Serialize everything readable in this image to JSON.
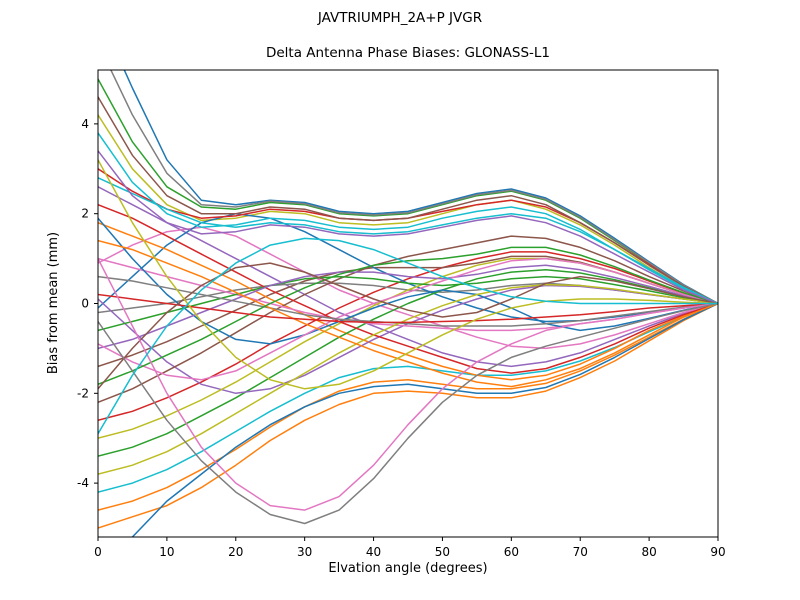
{
  "figure": {
    "suptitle": "JAVTRIUMPH_2A+P JVGR",
    "title": "Delta Antenna Phase Biases: GLONASS-L1"
  },
  "chart_data": {
    "type": "line",
    "title": "Delta Antenna Phase Biases: GLONASS-L1",
    "xlabel": "Elvation angle (degrees)",
    "ylabel": "Bias from mean (mm)",
    "xlim": [
      0,
      90
    ],
    "ylim": [
      -5.2,
      5.2
    ],
    "xticks": [
      0,
      10,
      20,
      30,
      40,
      50,
      60,
      70,
      80,
      90
    ],
    "yticks": [
      -4,
      -2,
      0,
      2,
      4
    ],
    "grid": false,
    "legend": "none",
    "palette": [
      "#1f77b4",
      "#ff7f0e",
      "#2ca02c",
      "#d62728",
      "#9467bd",
      "#8c564b",
      "#e377c2",
      "#7f7f7f",
      "#bcbd22",
      "#17becf"
    ],
    "x": [
      0,
      5,
      10,
      15,
      20,
      25,
      30,
      35,
      40,
      45,
      50,
      55,
      60,
      65,
      70,
      75,
      80,
      85,
      90
    ],
    "series": [
      {
        "values": [
          6.5,
          4.8,
          3.2,
          2.3,
          2.2,
          2.3,
          2.25,
          2.05,
          2.0,
          2.05,
          2.25,
          2.45,
          2.55,
          2.35,
          1.95,
          1.45,
          0.93,
          0.42,
          0
        ]
      },
      {
        "values": [
          -5.0,
          -4.75,
          -4.5,
          -4.1,
          -3.6,
          -3.05,
          -2.6,
          -2.25,
          -2.0,
          -1.95,
          -2.0,
          -2.1,
          -2.1,
          -1.95,
          -1.65,
          -1.28,
          -0.83,
          -0.38,
          0
        ]
      },
      {
        "values": [
          5.0,
          3.6,
          2.6,
          2.15,
          2.1,
          2.25,
          2.2,
          2.0,
          1.95,
          2.0,
          2.2,
          2.4,
          2.5,
          2.3,
          1.9,
          1.4,
          0.9,
          0.4,
          0
        ]
      },
      {
        "values": [
          -2.6,
          -2.4,
          -2.1,
          -1.75,
          -1.35,
          -0.9,
          -0.5,
          -0.1,
          0.25,
          0.55,
          0.8,
          1.0,
          1.15,
          1.15,
          1.0,
          0.78,
          0.5,
          0.23,
          0
        ]
      },
      {
        "values": [
          2.6,
          2.2,
          1.8,
          1.4,
          1.0,
          0.6,
          0.2,
          -0.2,
          -0.5,
          -0.8,
          -1.1,
          -1.3,
          -1.4,
          -1.3,
          -1.1,
          -0.8,
          -0.5,
          -0.22,
          0
        ]
      },
      {
        "values": [
          -1.4,
          -1.15,
          -0.85,
          -0.5,
          -0.15,
          0.2,
          0.5,
          0.7,
          0.8,
          0.8,
          0.8,
          0.9,
          1.05,
          1.05,
          0.92,
          0.7,
          0.45,
          0.2,
          0
        ]
      },
      {
        "values": [
          0.9,
          1.3,
          1.6,
          1.7,
          1.5,
          1.1,
          0.7,
          0.3,
          0,
          -0.25,
          -0.5,
          -0.75,
          -0.95,
          -1.0,
          -0.9,
          -0.7,
          -0.45,
          -0.2,
          0
        ]
      },
      {
        "values": [
          -0.2,
          -0.1,
          0,
          0.15,
          0.3,
          0.4,
          0.45,
          0.45,
          0.4,
          0.3,
          0.25,
          0.3,
          0.4,
          0.45,
          0.4,
          0.3,
          0.2,
          0.1,
          0
        ]
      },
      {
        "values": [
          4.2,
          3.0,
          2.2,
          1.85,
          1.9,
          2.05,
          2.0,
          1.8,
          1.75,
          1.8,
          2.0,
          2.2,
          2.3,
          2.1,
          1.75,
          1.3,
          0.8,
          0.35,
          0
        ]
      },
      {
        "values": [
          -4.2,
          -4.0,
          -3.7,
          -3.3,
          -2.85,
          -2.4,
          -2.0,
          -1.65,
          -1.45,
          -1.4,
          -1.5,
          -1.6,
          -1.6,
          -1.5,
          -1.28,
          -0.98,
          -0.63,
          -0.3,
          0
        ]
      },
      {
        "values": [
          -0.1,
          0.6,
          1.3,
          1.8,
          2.0,
          1.9,
          1.6,
          1.2,
          0.8,
          0.45,
          0.15,
          -0.1,
          -0.3,
          -0.4,
          -0.38,
          -0.3,
          -0.2,
          -0.1,
          0
        ]
      },
      {
        "values": [
          1.8,
          1.5,
          1.2,
          0.85,
          0.5,
          0.1,
          -0.25,
          -0.6,
          -0.9,
          -1.15,
          -1.4,
          -1.6,
          -1.7,
          -1.6,
          -1.35,
          -1.0,
          -0.6,
          -0.28,
          0
        ]
      },
      {
        "values": [
          -3.4,
          -3.2,
          -2.9,
          -2.5,
          -2.1,
          -1.65,
          -1.2,
          -0.75,
          -0.35,
          0,
          0.3,
          0.55,
          0.7,
          0.75,
          0.68,
          0.53,
          0.35,
          0.16,
          0
        ]
      },
      {
        "values": [
          3.0,
          2.5,
          2.1,
          1.9,
          1.95,
          2.1,
          2.05,
          1.9,
          1.85,
          1.9,
          2.05,
          2.2,
          2.3,
          2.15,
          1.8,
          1.35,
          0.87,
          0.4,
          0
        ]
      },
      {
        "values": [
          0.1,
          -0.6,
          -1.3,
          -1.8,
          -2.0,
          -1.9,
          -1.6,
          -1.2,
          -0.8,
          -0.45,
          -0.15,
          0.1,
          0.3,
          0.4,
          0.38,
          0.3,
          0.2,
          0.1,
          0
        ]
      },
      {
        "values": [
          -2.2,
          -1.9,
          -1.5,
          -1.1,
          -0.65,
          -0.2,
          0.2,
          0.55,
          0.85,
          1.05,
          1.2,
          1.35,
          1.5,
          1.45,
          1.25,
          0.95,
          0.6,
          0.28,
          0
        ]
      },
      {
        "values": [
          1.0,
          0.8,
          0.6,
          0.4,
          0.2,
          0,
          -0.2,
          -0.35,
          -0.45,
          -0.5,
          -0.55,
          -0.6,
          -0.6,
          -0.55,
          -0.45,
          -0.35,
          -0.22,
          -0.1,
          0
        ]
      },
      {
        "values": [
          5.8,
          4.2,
          2.9,
          2.2,
          2.15,
          2.28,
          2.22,
          2.02,
          1.97,
          2.02,
          2.22,
          2.42,
          2.52,
          2.32,
          1.92,
          1.42,
          0.91,
          0.41,
          0
        ]
      },
      {
        "values": [
          -3.0,
          -2.8,
          -2.5,
          -2.15,
          -1.75,
          -1.3,
          -0.85,
          -0.45,
          -0.05,
          0.3,
          0.6,
          0.85,
          1.0,
          1.0,
          0.9,
          0.7,
          0.45,
          0.2,
          0
        ]
      },
      {
        "values": [
          3.8,
          2.7,
          2.0,
          1.7,
          1.75,
          1.9,
          1.85,
          1.7,
          1.65,
          1.7,
          1.9,
          2.05,
          2.15,
          2.0,
          1.65,
          1.2,
          0.75,
          0.33,
          0
        ]
      },
      {
        "values": [
          1.9,
          1.0,
          0.2,
          -0.4,
          -0.8,
          -0.9,
          -0.7,
          -0.4,
          -0.1,
          0.15,
          0.3,
          0.2,
          -0.1,
          -0.45,
          -0.6,
          -0.5,
          -0.33,
          -0.15,
          0
        ]
      },
      {
        "values": [
          -4.6,
          -4.4,
          -4.1,
          -3.7,
          -3.25,
          -2.75,
          -2.3,
          -1.95,
          -1.75,
          -1.7,
          -1.8,
          -1.9,
          -1.9,
          -1.78,
          -1.5,
          -1.15,
          -0.75,
          -0.35,
          0
        ]
      },
      {
        "values": [
          -0.6,
          -0.4,
          -0.2,
          0,
          0.2,
          0.4,
          0.55,
          0.6,
          0.55,
          0.45,
          0.4,
          0.45,
          0.55,
          0.6,
          0.55,
          0.42,
          0.28,
          0.13,
          0
        ]
      },
      {
        "values": [
          2.2,
          1.9,
          1.5,
          1.1,
          0.7,
          0.3,
          -0.05,
          -0.4,
          -0.7,
          -0.95,
          -1.2,
          -1.45,
          -1.55,
          -1.45,
          -1.2,
          -0.9,
          -0.55,
          -0.25,
          0
        ]
      },
      {
        "values": [
          -1.0,
          -0.8,
          -0.5,
          -0.2,
          0.1,
          0.4,
          0.6,
          0.7,
          0.7,
          0.6,
          0.55,
          0.65,
          0.8,
          0.85,
          0.75,
          0.58,
          0.38,
          0.17,
          0
        ]
      },
      {
        "values": [
          4.6,
          3.3,
          2.4,
          2.0,
          2.0,
          2.15,
          2.1,
          1.9,
          1.85,
          1.9,
          2.1,
          2.3,
          2.4,
          2.2,
          1.8,
          1.35,
          0.85,
          0.38,
          0
        ]
      },
      {
        "values": [
          -0.9,
          -1.3,
          -1.6,
          -1.7,
          -1.5,
          -1.1,
          -0.7,
          -0.3,
          0,
          0.25,
          0.5,
          0.75,
          0.95,
          1.0,
          0.9,
          0.7,
          0.45,
          0.2,
          0
        ]
      },
      {
        "values": [
          0.6,
          0.5,
          0.35,
          0.2,
          0.05,
          -0.1,
          -0.25,
          -0.35,
          -0.4,
          -0.45,
          -0.5,
          -0.5,
          -0.5,
          -0.45,
          -0.38,
          -0.28,
          -0.18,
          -0.08,
          0
        ]
      },
      {
        "values": [
          -3.8,
          -3.6,
          -3.3,
          -2.9,
          -2.45,
          -2.0,
          -1.55,
          -1.1,
          -0.7,
          -0.35,
          -0.05,
          0.2,
          0.35,
          0.42,
          0.4,
          0.32,
          0.21,
          0.1,
          0
        ]
      },
      {
        "values": [
          2.8,
          2.45,
          2.1,
          1.8,
          1.7,
          1.8,
          1.75,
          1.6,
          1.55,
          1.6,
          1.75,
          1.9,
          2.0,
          1.9,
          1.6,
          1.2,
          0.78,
          0.36,
          0
        ]
      },
      {
        "values": [
          -6.0,
          -5.2,
          -4.4,
          -3.8,
          -3.2,
          -2.7,
          -2.3,
          -2.0,
          -1.85,
          -1.8,
          -1.9,
          -2.0,
          -2.0,
          -1.87,
          -1.58,
          -1.2,
          -0.78,
          -0.36,
          0
        ]
      },
      {
        "values": [
          1.4,
          1.2,
          0.9,
          0.6,
          0.25,
          -0.1,
          -0.45,
          -0.75,
          -1.05,
          -1.3,
          -1.55,
          -1.75,
          -1.85,
          -1.7,
          -1.45,
          -1.1,
          -0.7,
          -0.3,
          0
        ]
      },
      {
        "values": [
          -1.8,
          -1.5,
          -1.15,
          -0.8,
          -0.4,
          0,
          0.35,
          0.65,
          0.85,
          0.95,
          1.0,
          1.1,
          1.25,
          1.25,
          1.08,
          0.82,
          0.52,
          0.24,
          0
        ]
      },
      {
        "values": [
          0.2,
          0.1,
          0,
          -0.1,
          -0.2,
          -0.3,
          -0.35,
          -0.4,
          -0.42,
          -0.42,
          -0.4,
          -0.38,
          -0.35,
          -0.3,
          -0.25,
          -0.18,
          -0.1,
          -0.05,
          0
        ]
      },
      {
        "values": [
          3.4,
          2.4,
          1.8,
          1.55,
          1.6,
          1.75,
          1.7,
          1.55,
          1.5,
          1.55,
          1.7,
          1.85,
          1.95,
          1.8,
          1.5,
          1.1,
          0.7,
          0.3,
          0
        ]
      },
      {
        "values": [
          -1.9,
          -1.0,
          -0.2,
          0.4,
          0.8,
          0.9,
          0.7,
          0.4,
          0.1,
          -0.15,
          -0.3,
          -0.2,
          0.1,
          0.45,
          0.6,
          0.5,
          0.33,
          0.15,
          0
        ]
      },
      {
        "values": [
          1.0,
          -0.5,
          -2.0,
          -3.2,
          -4.0,
          -4.5,
          -4.6,
          -4.3,
          -3.6,
          -2.7,
          -1.9,
          -1.3,
          -0.9,
          -0.6,
          -0.45,
          -0.35,
          -0.22,
          -0.1,
          0
        ]
      },
      {
        "values": [
          -0.4,
          -1.5,
          -2.6,
          -3.5,
          -4.2,
          -4.7,
          -4.9,
          -4.6,
          -3.9,
          -3.0,
          -2.2,
          -1.6,
          -1.2,
          -0.95,
          -0.75,
          -0.55,
          -0.35,
          -0.16,
          0
        ]
      },
      {
        "values": [
          3.2,
          1.8,
          0.6,
          -0.4,
          -1.2,
          -1.7,
          -1.9,
          -1.8,
          -1.5,
          -1.1,
          -0.7,
          -0.35,
          -0.1,
          0.05,
          0.1,
          0.1,
          0.07,
          0.03,
          0
        ]
      },
      {
        "values": [
          -2.9,
          -1.6,
          -0.5,
          0.3,
          0.9,
          1.3,
          1.45,
          1.4,
          1.2,
          0.9,
          0.6,
          0.35,
          0.15,
          0.05,
          0,
          0,
          0,
          0,
          0
        ]
      }
    ]
  }
}
